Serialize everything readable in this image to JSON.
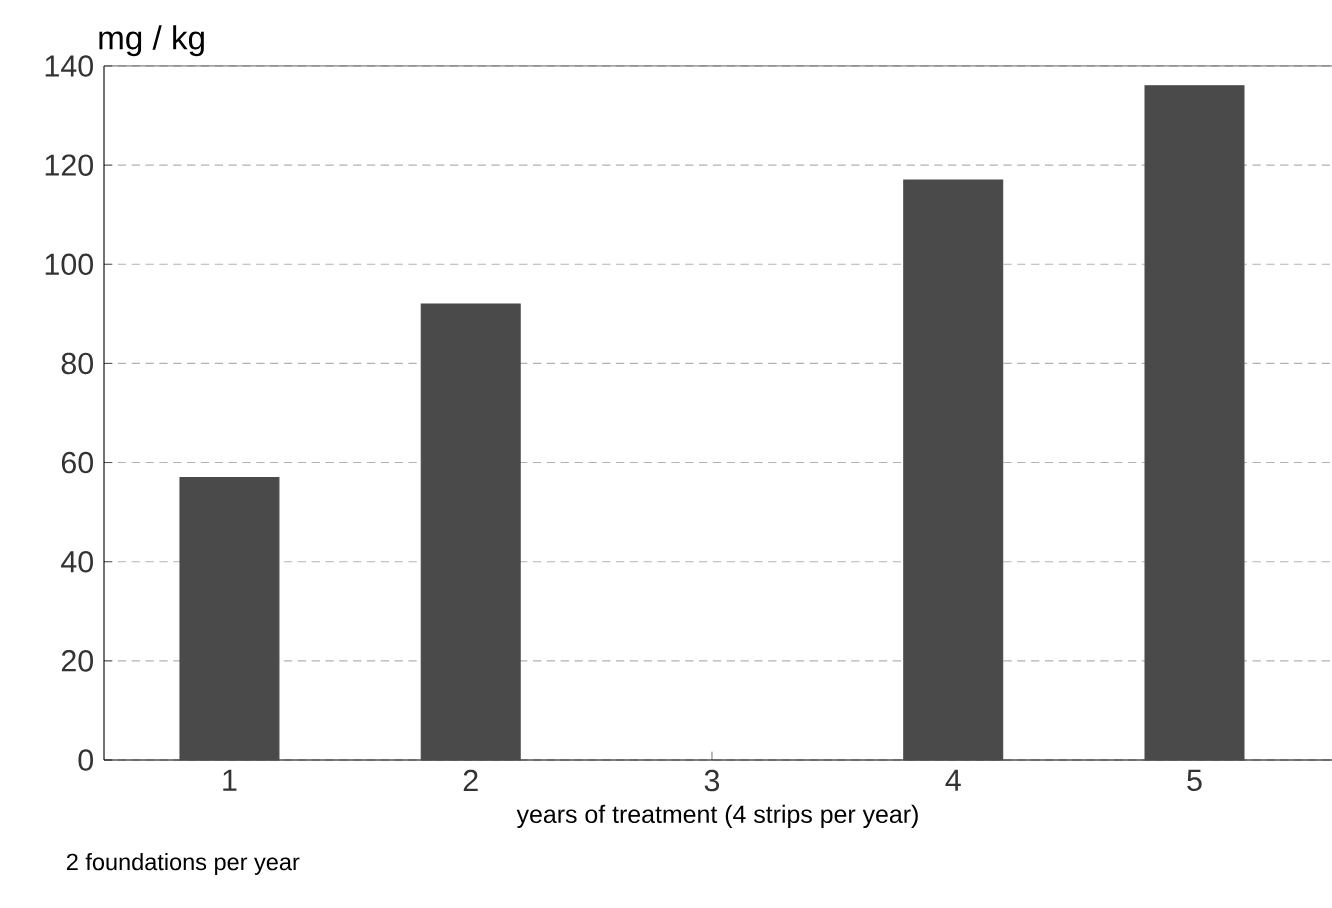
{
  "chart_data": {
    "type": "bar",
    "ylabel": "mg / kg",
    "xlabel": "years of treatment (4 strips per year)",
    "annotations": [
      "2 foundations per year"
    ],
    "categories": [
      "1",
      "2",
      "3",
      "4",
      "5"
    ],
    "values": [
      57,
      92,
      null,
      117,
      136
    ],
    "color": "#4a4a4a",
    "ylim": [
      0,
      140
    ],
    "yticks": [
      0,
      20,
      40,
      60,
      80,
      100,
      120,
      140
    ],
    "grid": "y"
  }
}
